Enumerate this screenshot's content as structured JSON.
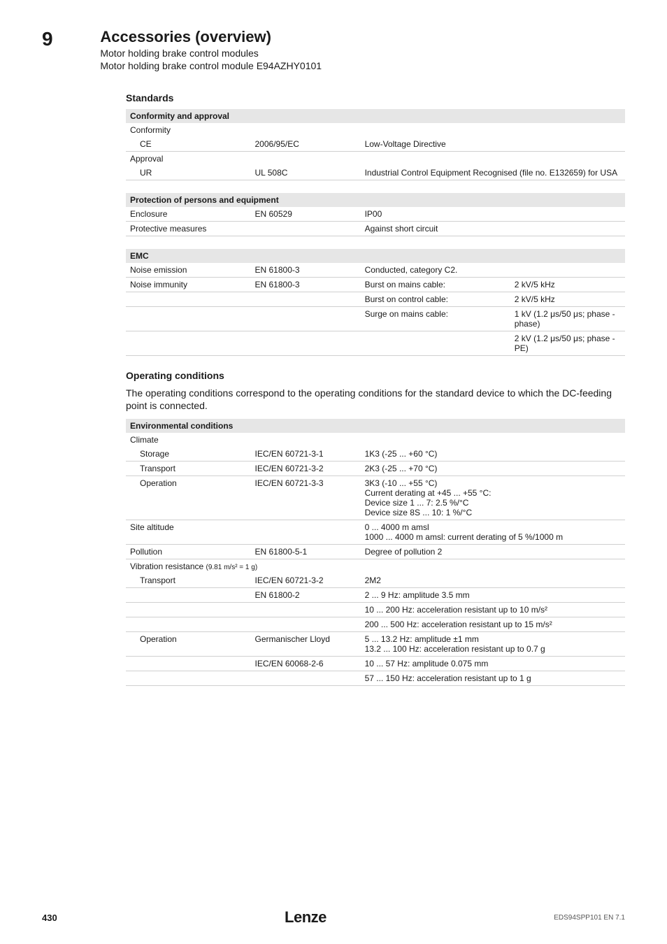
{
  "header": {
    "chapter": "9",
    "title": "Accessories (overview)",
    "sub1": "Motor holding brake control modules",
    "sub2": "Motor holding brake control module E94AZHY0101"
  },
  "standards": {
    "heading": "Standards",
    "conformity_approval": {
      "title": "Conformity and approval",
      "rows": [
        {
          "c1": "Conformity",
          "c2": "",
          "c3": "",
          "sub": false,
          "nb": true
        },
        {
          "c1": "CE",
          "c2": "2006/95/EC",
          "c3": "Low-Voltage Directive",
          "sub": true,
          "nb": false
        },
        {
          "c1": "Approval",
          "c2": "",
          "c3": "",
          "sub": false,
          "nb": true
        },
        {
          "c1": "UR",
          "c2": "UL 508C",
          "c3": "Industrial Control Equipment Recognised (file no. E132659) for USA",
          "sub": true,
          "nb": false
        }
      ]
    },
    "protection": {
      "title": "Protection of persons and equipment",
      "rows": [
        {
          "c1": "Enclosure",
          "c2": "EN 60529",
          "c3": "IP00"
        },
        {
          "c1": "Protective measures",
          "c2": "",
          "c3": "Against short circuit"
        }
      ]
    },
    "emc": {
      "title": "EMC",
      "rows": [
        {
          "c1": "Noise emission",
          "c2": "EN 61800-3",
          "c3": "Conducted, category C2.",
          "c4": ""
        },
        {
          "c1": "Noise immunity",
          "c2": "EN 61800-3",
          "c3": "Burst on mains cable:",
          "c4": "2 kV/5 kHz"
        },
        {
          "c1": "",
          "c2": "",
          "c3": "Burst on control cable:",
          "c4": "2 kV/5 kHz"
        },
        {
          "c1": "",
          "c2": "",
          "c3": "Surge on mains cable:",
          "c4": "1 kV (1.2 μs/50 μs; phase - phase)"
        },
        {
          "c1": "",
          "c2": "",
          "c3": "",
          "c4": "2 kV (1.2 μs/50 μs; phase - PE)"
        }
      ]
    }
  },
  "operating": {
    "heading": "Operating conditions",
    "body": "The operating conditions correspond to the operating conditions for the standard device to which the DC-feeding point is connected.",
    "env": {
      "title": "Environmental conditions",
      "climate_label": "Climate",
      "climate_rows": [
        {
          "c1": "Storage",
          "c2": "IEC/EN 60721-3-1",
          "c3": "1K3 (-25 ... +60 °C)"
        },
        {
          "c1": "Transport",
          "c2": "IEC/EN 60721-3-2",
          "c3": "2K3 (-25 ... +70 °C)"
        },
        {
          "c1": "Operation",
          "c2": "IEC/EN 60721-3-3",
          "c3": "3K3 (-10 ... +55 °C)\nCurrent derating at +45 ... +55 °C:\nDevice size 1 ... 7: 2.5 %/°C\nDevice size 8S ... 10: 1 %/°C"
        }
      ],
      "rows2": [
        {
          "c1": "Site altitude",
          "c2": "",
          "c3": "0 ... 4000 m amsl\n1000 ... 4000 m amsl: current derating of  5 %/1000 m"
        },
        {
          "c1": "Pollution",
          "c2": "EN 61800-5-1",
          "c3": "Degree of pollution 2"
        }
      ],
      "vibration_label": "Vibration resistance ",
      "vibration_note": "(9.81 m/s² = 1 g)",
      "vibration_rows": [
        {
          "c1": "Transport",
          "c2": "IEC/EN 60721-3-2",
          "c3": "2M2",
          "sub": true
        },
        {
          "c1": "",
          "c2": "EN 61800-2",
          "c3": "2 ... 9 Hz: amplitude 3.5 mm",
          "sub": true
        },
        {
          "c1": "",
          "c2": "",
          "c3": "10 ... 200 Hz: acceleration resistant up to 10 m/s²",
          "sub": true
        },
        {
          "c1": "",
          "c2": "",
          "c3": "200 ... 500 Hz: acceleration resistant up to 15 m/s²",
          "sub": true
        },
        {
          "c1": "Operation",
          "c2": "Germanischer Lloyd",
          "c3": "5 ... 13.2 Hz: amplitude ±1 mm\n13.2 ... 100 Hz: acceleration resistant up to 0.7 g",
          "sub": true
        },
        {
          "c1": "",
          "c2": "IEC/EN 60068-2-6",
          "c3": "10 ... 57 Hz: amplitude 0.075 mm",
          "sub": true
        },
        {
          "c1": "",
          "c2": "",
          "c3": "57 ... 150 Hz: acceleration resistant up to 1 g",
          "sub": true
        }
      ]
    }
  },
  "footer": {
    "page": "430",
    "brand": "Lenze",
    "doc": "EDS94SPP101 EN  7.1"
  }
}
